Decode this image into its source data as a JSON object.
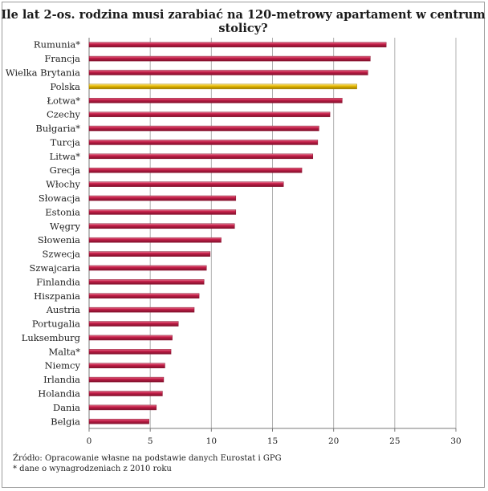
{
  "chart_data": {
    "type": "bar",
    "orientation": "horizontal",
    "title": "Ile lat 2-os. rodzina musi zarabiać na 120-metrowy  apartament w centrum stolicy?",
    "categories": [
      "Rumunia*",
      "Francja",
      "Wielka Brytania",
      "Polska",
      "Łotwa*",
      "Czechy",
      "Bułgaria*",
      "Turcja",
      "Litwa*",
      "Grecja",
      "Włochy",
      "Słowacja",
      "Estonia",
      "Węgry",
      "Słowenia",
      "Szwecja",
      "Szwajcaria",
      "Finlandia",
      "Hiszpania",
      "Austria",
      "Portugalia",
      "Luksemburg",
      "Malta*",
      "Niemcy",
      "Irlandia",
      "Holandia",
      "Dania",
      "Belgia"
    ],
    "values": [
      24.3,
      23.0,
      22.8,
      21.9,
      20.7,
      19.7,
      18.8,
      18.7,
      18.3,
      17.4,
      15.9,
      12.0,
      12.0,
      11.9,
      10.8,
      9.9,
      9.6,
      9.4,
      9.0,
      8.6,
      7.3,
      6.8,
      6.7,
      6.2,
      6.1,
      6.0,
      5.5,
      4.9
    ],
    "highlight": "Polska",
    "xlim": [
      0,
      30
    ],
    "xticks": [
      0,
      5,
      10,
      15,
      20,
      25,
      30
    ],
    "grid": true,
    "colors": {
      "bar": "#c8204b",
      "highlight": "#e6b800",
      "grid": "#b0b0b0"
    }
  },
  "notes": {
    "source": "Źródło: Opracowanie własne na podstawie danych Eurostat i GPG",
    "footnote": "* dane o wynagrodzeniach z 2010 roku"
  }
}
